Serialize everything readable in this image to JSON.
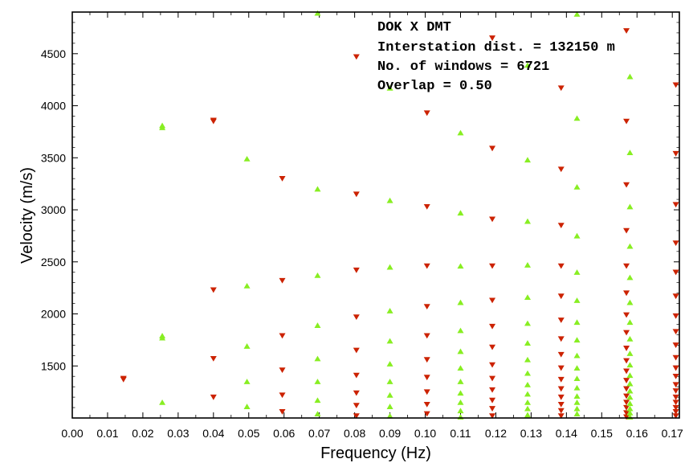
{
  "chart_data": {
    "type": "scatter",
    "title": "",
    "xlabel": "Frequency (Hz)",
    "ylabel": "Velocity (m/s)",
    "xlim": [
      0.0,
      0.172
    ],
    "ylim": [
      1000,
      4900
    ],
    "x_ticks": [
      "0.00",
      "0.01",
      "0.02",
      "0.03",
      "0.04",
      "0.05",
      "0.06",
      "0.07",
      "0.08",
      "0.09",
      "0.10",
      "0.11",
      "0.12",
      "0.13",
      "0.14",
      "0.15",
      "0.16",
      "0.17"
    ],
    "y_ticks": [
      "1500",
      "2000",
      "2500",
      "3000",
      "3500",
      "4000",
      "4500"
    ],
    "annotations": [
      "DOK X DMT",
      "Interstation dist. = 132150 m",
      "No. of windows = 6721",
      "Overlap = 0.50"
    ],
    "colors": {
      "red": "#cc2200",
      "green": "#88ee22"
    },
    "series": [
      {
        "marker": "triangle-down",
        "color": "#cc2200",
        "points": [
          [
            0.0145,
            1380
          ],
          [
            0.0145,
            1370
          ],
          [
            0.04,
            3860
          ],
          [
            0.04,
            3850
          ],
          [
            0.04,
            2230
          ],
          [
            0.04,
            1570
          ],
          [
            0.04,
            1200
          ],
          [
            0.0595,
            3300
          ],
          [
            0.0595,
            2320
          ],
          [
            0.0595,
            1790
          ],
          [
            0.0595,
            1460
          ],
          [
            0.0595,
            1220
          ],
          [
            0.0595,
            1060
          ],
          [
            0.0805,
            4470
          ],
          [
            0.0805,
            3150
          ],
          [
            0.0805,
            2420
          ],
          [
            0.0805,
            1970
          ],
          [
            0.0805,
            1650
          ],
          [
            0.0805,
            1410
          ],
          [
            0.0805,
            1240
          ],
          [
            0.0805,
            1120
          ],
          [
            0.0805,
            1020
          ],
          [
            0.1005,
            3930
          ],
          [
            0.1005,
            3030
          ],
          [
            0.1005,
            2460
          ],
          [
            0.1005,
            2070
          ],
          [
            0.1005,
            1790
          ],
          [
            0.1005,
            1560
          ],
          [
            0.1005,
            1390
          ],
          [
            0.1005,
            1250
          ],
          [
            0.1005,
            1130
          ],
          [
            0.1005,
            1040
          ],
          [
            0.119,
            4650
          ],
          [
            0.119,
            3590
          ],
          [
            0.119,
            2910
          ],
          [
            0.119,
            2460
          ],
          [
            0.119,
            2130
          ],
          [
            0.119,
            1880
          ],
          [
            0.119,
            1680
          ],
          [
            0.119,
            1510
          ],
          [
            0.119,
            1380
          ],
          [
            0.119,
            1270
          ],
          [
            0.119,
            1170
          ],
          [
            0.119,
            1090
          ],
          [
            0.119,
            1020
          ],
          [
            0.1385,
            4170
          ],
          [
            0.1385,
            3390
          ],
          [
            0.1385,
            2850
          ],
          [
            0.1385,
            2460
          ],
          [
            0.1385,
            2170
          ],
          [
            0.1385,
            1940
          ],
          [
            0.1385,
            1760
          ],
          [
            0.1385,
            1610
          ],
          [
            0.1385,
            1480
          ],
          [
            0.1385,
            1370
          ],
          [
            0.1385,
            1280
          ],
          [
            0.1385,
            1200
          ],
          [
            0.1385,
            1130
          ],
          [
            0.1385,
            1070
          ],
          [
            0.1385,
            1020
          ],
          [
            0.157,
            4720
          ],
          [
            0.157,
            3850
          ],
          [
            0.157,
            3240
          ],
          [
            0.157,
            2800
          ],
          [
            0.157,
            2460
          ],
          [
            0.157,
            2200
          ],
          [
            0.157,
            1990
          ],
          [
            0.157,
            1820
          ],
          [
            0.157,
            1670
          ],
          [
            0.157,
            1550
          ],
          [
            0.157,
            1450
          ],
          [
            0.157,
            1360
          ],
          [
            0.157,
            1280
          ],
          [
            0.157,
            1210
          ],
          [
            0.157,
            1150
          ],
          [
            0.157,
            1100
          ],
          [
            0.157,
            1050
          ],
          [
            0.157,
            1010
          ],
          [
            0.171,
            4200
          ],
          [
            0.171,
            3540
          ],
          [
            0.171,
            3050
          ],
          [
            0.171,
            2680
          ],
          [
            0.171,
            2400
          ],
          [
            0.171,
            2170
          ],
          [
            0.171,
            1980
          ],
          [
            0.171,
            1830
          ],
          [
            0.171,
            1700
          ],
          [
            0.171,
            1580
          ],
          [
            0.171,
            1480
          ],
          [
            0.171,
            1400
          ],
          [
            0.171,
            1320
          ],
          [
            0.171,
            1260
          ],
          [
            0.171,
            1200
          ],
          [
            0.171,
            1150
          ],
          [
            0.171,
            1100
          ],
          [
            0.171,
            1060
          ],
          [
            0.171,
            1020
          ]
        ]
      },
      {
        "marker": "triangle-up",
        "color": "#88ee22",
        "points": [
          [
            0.0255,
            3810
          ],
          [
            0.0255,
            3790
          ],
          [
            0.0255,
            1790
          ],
          [
            0.0255,
            1770
          ],
          [
            0.0255,
            1150
          ],
          [
            0.0495,
            3490
          ],
          [
            0.0495,
            2270
          ],
          [
            0.0495,
            1690
          ],
          [
            0.0495,
            1350
          ],
          [
            0.0495,
            1110
          ],
          [
            0.0695,
            4890
          ],
          [
            0.0695,
            3200
          ],
          [
            0.0695,
            2370
          ],
          [
            0.0695,
            1890
          ],
          [
            0.0695,
            1570
          ],
          [
            0.0695,
            1350
          ],
          [
            0.0695,
            1170
          ],
          [
            0.0695,
            1040
          ],
          [
            0.09,
            4170
          ],
          [
            0.09,
            3090
          ],
          [
            0.09,
            2450
          ],
          [
            0.09,
            2030
          ],
          [
            0.09,
            1740
          ],
          [
            0.09,
            1520
          ],
          [
            0.09,
            1350
          ],
          [
            0.09,
            1220
          ],
          [
            0.09,
            1110
          ],
          [
            0.09,
            1020
          ],
          [
            0.11,
            3740
          ],
          [
            0.11,
            2970
          ],
          [
            0.11,
            2460
          ],
          [
            0.11,
            2110
          ],
          [
            0.11,
            1840
          ],
          [
            0.11,
            1640
          ],
          [
            0.11,
            1480
          ],
          [
            0.11,
            1350
          ],
          [
            0.11,
            1240
          ],
          [
            0.11,
            1150
          ],
          [
            0.11,
            1070
          ],
          [
            0.11,
            1010
          ],
          [
            0.129,
            4390
          ],
          [
            0.129,
            3480
          ],
          [
            0.129,
            2890
          ],
          [
            0.129,
            2470
          ],
          [
            0.129,
            2160
          ],
          [
            0.129,
            1910
          ],
          [
            0.129,
            1720
          ],
          [
            0.129,
            1560
          ],
          [
            0.129,
            1430
          ],
          [
            0.129,
            1320
          ],
          [
            0.129,
            1230
          ],
          [
            0.129,
            1150
          ],
          [
            0.129,
            1090
          ],
          [
            0.129,
            1030
          ],
          [
            0.143,
            4880
          ],
          [
            0.143,
            3880
          ],
          [
            0.143,
            3220
          ],
          [
            0.143,
            2750
          ],
          [
            0.143,
            2400
          ],
          [
            0.143,
            2130
          ],
          [
            0.143,
            1920
          ],
          [
            0.143,
            1750
          ],
          [
            0.143,
            1600
          ],
          [
            0.143,
            1480
          ],
          [
            0.143,
            1380
          ],
          [
            0.143,
            1290
          ],
          [
            0.143,
            1210
          ],
          [
            0.143,
            1150
          ],
          [
            0.143,
            1090
          ],
          [
            0.143,
            1040
          ],
          [
            0.158,
            4280
          ],
          [
            0.158,
            3550
          ],
          [
            0.158,
            3030
          ],
          [
            0.158,
            2650
          ],
          [
            0.158,
            2350
          ],
          [
            0.158,
            2110
          ],
          [
            0.158,
            1920
          ],
          [
            0.158,
            1760
          ],
          [
            0.158,
            1620
          ],
          [
            0.158,
            1510
          ],
          [
            0.158,
            1410
          ],
          [
            0.158,
            1330
          ],
          [
            0.158,
            1260
          ],
          [
            0.158,
            1200
          ],
          [
            0.158,
            1140
          ],
          [
            0.158,
            1090
          ],
          [
            0.158,
            1050
          ],
          [
            0.158,
            1010
          ]
        ]
      }
    ]
  }
}
